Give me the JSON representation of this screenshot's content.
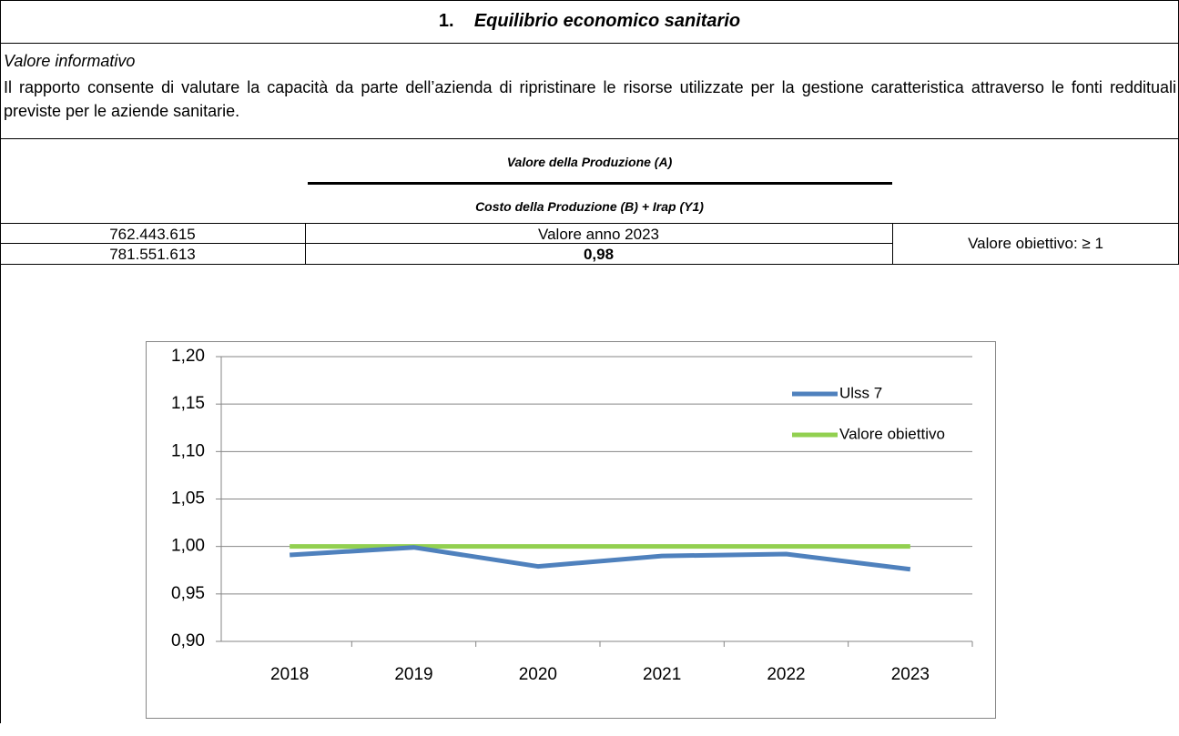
{
  "title": {
    "number": "1.",
    "text": "Equilibrio economico sanitario"
  },
  "info": {
    "heading": "Valore informativo",
    "text": "Il rapporto consente di valutare la capacità da parte dell’azienda di ripristinare le risorse utilizzate per la gestione caratteristica attraverso le fonti reddituali previste per le aziende sanitarie."
  },
  "formula": {
    "numerator": "Valore della Produzione (A)",
    "denominator": "Costo della Produzione (B) + Irap (Y1)"
  },
  "values": {
    "numerator": "762.443.615",
    "denominator": "781.551.613",
    "year_label": "Valore anno 2023",
    "result": "0,98",
    "target": "Valore obiettivo: ≥ 1"
  },
  "chart": {
    "type": "line",
    "categories": [
      "2018",
      "2019",
      "2020",
      "2021",
      "2022",
      "2023"
    ],
    "series": [
      {
        "name": "Ulss 7",
        "color": "#4f81bd",
        "values": [
          0.991,
          0.999,
          0.979,
          0.99,
          0.992,
          0.976
        ]
      },
      {
        "name": "Valore obiettivo",
        "color": "#92d050",
        "values": [
          1,
          1,
          1,
          1,
          1,
          1
        ]
      }
    ],
    "ylim": [
      0.9,
      1.2
    ],
    "yticks": [
      {
        "value": 0.9,
        "label": "0,90"
      },
      {
        "value": 0.95,
        "label": "0,95"
      },
      {
        "value": 1,
        "label": "1,00"
      },
      {
        "value": 1.05,
        "label": "1,05"
      },
      {
        "value": 1.1,
        "label": "1,10"
      },
      {
        "value": 1.15,
        "label": "1,15"
      },
      {
        "value": 1.2,
        "label": "1,20"
      }
    ],
    "grid": true,
    "legend": "right"
  }
}
